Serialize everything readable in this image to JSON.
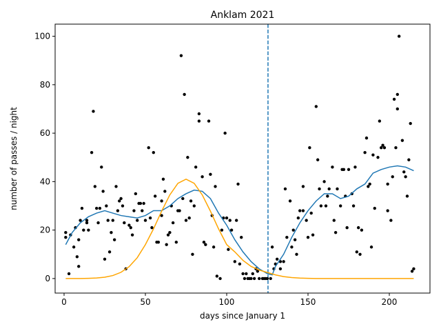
{
  "chart_data": {
    "type": "scatter",
    "title": "Anklam 2021",
    "x_label": "days since January 1",
    "y_label": "number of passes / night",
    "xlim": [
      -5.5,
      225
    ],
    "ylim": [
      -6,
      105
    ],
    "xticks": [
      0,
      50,
      100,
      150,
      200
    ],
    "yticks": [
      0,
      20,
      40,
      60,
      80,
      100
    ],
    "grid": false,
    "points": {
      "color": "#000000",
      "x": [
        1,
        1,
        3,
        4,
        6,
        7,
        8,
        9,
        9,
        10,
        11,
        12,
        14,
        14,
        15,
        17,
        18,
        19,
        20,
        21,
        22,
        23,
        24,
        25,
        26,
        27,
        28,
        29,
        30,
        31,
        32,
        33,
        34,
        35,
        36,
        37,
        38,
        40,
        41,
        42,
        43,
        44,
        45,
        46,
        47,
        48,
        49,
        50,
        52,
        53,
        54,
        55,
        56,
        57,
        58,
        60,
        60,
        61,
        62,
        63,
        64,
        65,
        66,
        67,
        69,
        70,
        71,
        72,
        73,
        74,
        75,
        76,
        77,
        78,
        79,
        80,
        81,
        83,
        83,
        85,
        86,
        87,
        89,
        90,
        91,
        92,
        93,
        94,
        96,
        97,
        98,
        99,
        100,
        101,
        102,
        103,
        105,
        106,
        107,
        108,
        109,
        110,
        111,
        112,
        113,
        114,
        115,
        116,
        117,
        118,
        119,
        120,
        122,
        123,
        124,
        125,
        127,
        128,
        129,
        130,
        131,
        133,
        133,
        135,
        136,
        137,
        139,
        140,
        141,
        142,
        143,
        144,
        145,
        147,
        147,
        149,
        150,
        151,
        152,
        153,
        155,
        156,
        157,
        158,
        160,
        161,
        162,
        163,
        165,
        166,
        167,
        168,
        170,
        171,
        172,
        173,
        174,
        175,
        177,
        178,
        179,
        180,
        181,
        182,
        183,
        185,
        186,
        187,
        188,
        189,
        190,
        191,
        193,
        194,
        195,
        196,
        197,
        199,
        199,
        201,
        202,
        203,
        204,
        205,
        205,
        206,
        208,
        209,
        210,
        211,
        212,
        213,
        214,
        215
      ],
      "y": [
        19,
        17,
        2,
        18,
        13,
        21,
        9,
        16,
        5,
        24,
        29,
        20,
        23,
        24,
        20,
        52,
        69,
        38,
        29,
        23,
        29,
        46,
        36,
        8,
        30,
        24,
        11,
        19,
        24,
        16,
        38,
        28,
        32,
        33,
        30,
        23,
        4,
        22,
        21,
        18,
        28,
        35,
        24,
        31,
        31,
        28,
        31,
        24,
        54,
        25,
        21,
        52,
        34,
        15,
        15,
        26,
        32,
        41,
        36,
        14,
        18,
        19,
        30,
        23,
        15,
        28,
        28,
        92,
        33,
        76,
        24,
        50,
        25,
        32,
        10,
        30,
        46,
        68,
        65,
        42,
        15,
        14,
        65,
        43,
        26,
        13,
        38,
        1,
        0,
        20,
        25,
        60,
        25,
        12,
        24,
        20,
        7,
        24,
        39,
        6,
        17,
        2,
        0,
        2,
        0,
        0,
        0,
        2,
        0,
        4,
        3,
        0,
        0,
        0,
        0,
        0,
        0,
        13,
        4,
        6,
        8,
        7,
        4,
        7,
        37,
        17,
        32,
        13,
        20,
        16,
        10,
        25,
        28,
        38,
        28,
        24,
        17,
        54,
        27,
        18,
        71,
        49,
        37,
        30,
        40,
        30,
        34,
        37,
        46,
        24,
        19,
        37,
        30,
        45,
        45,
        34,
        21,
        45,
        35,
        30,
        46,
        11,
        21,
        10,
        20,
        52,
        58,
        38,
        39,
        13,
        51,
        29,
        50,
        65,
        54,
        55,
        54,
        39,
        28,
        24,
        42,
        74,
        54,
        70,
        76,
        100,
        57,
        44,
        42,
        34,
        49,
        64,
        3,
        4
      ]
    },
    "smooth": {
      "color": "#1f77b4",
      "x": [
        1,
        5,
        10,
        15,
        20,
        25,
        30,
        35,
        40,
        45,
        50,
        55,
        60,
        65,
        70,
        75,
        80,
        85,
        90,
        95,
        100,
        105,
        110,
        115,
        120,
        125,
        128,
        130,
        135,
        140,
        145,
        150,
        155,
        160,
        165,
        170,
        175,
        180,
        185,
        190,
        195,
        200,
        205,
        210,
        215
      ],
      "y": [
        14,
        19,
        23,
        25.5,
        27,
        28,
        27,
        26,
        25.5,
        25,
        26,
        28,
        28,
        30,
        33,
        35,
        36.5,
        36,
        33,
        27,
        22,
        16,
        11,
        7,
        4,
        2,
        1.5,
        5,
        10,
        17,
        23,
        28,
        32,
        35,
        35,
        33,
        34,
        37,
        39,
        43.5,
        45,
        46,
        46.5,
        46,
        44.5
      ]
    },
    "model": {
      "color": "#ffa500",
      "x": [
        1,
        5,
        10,
        15,
        20,
        25,
        30,
        35,
        40,
        45,
        50,
        55,
        60,
        65,
        70,
        75,
        80,
        85,
        90,
        95,
        100,
        105,
        110,
        115,
        120,
        125,
        130,
        135,
        140,
        145,
        150,
        155,
        215
      ],
      "y": [
        0,
        0,
        0.03,
        0.08,
        0.22,
        0.54,
        1.24,
        2.57,
        4.9,
        8.6,
        14,
        20.5,
        27.8,
        34.5,
        39.3,
        41,
        39.3,
        34.5,
        27.8,
        20.5,
        14,
        11,
        7.5,
        5,
        3.5,
        2.5,
        1.5,
        0.8,
        0.4,
        0.2,
        0.1,
        0,
        0
      ]
    },
    "vline": {
      "x": 125.4,
      "color": "#1f77b4"
    }
  }
}
